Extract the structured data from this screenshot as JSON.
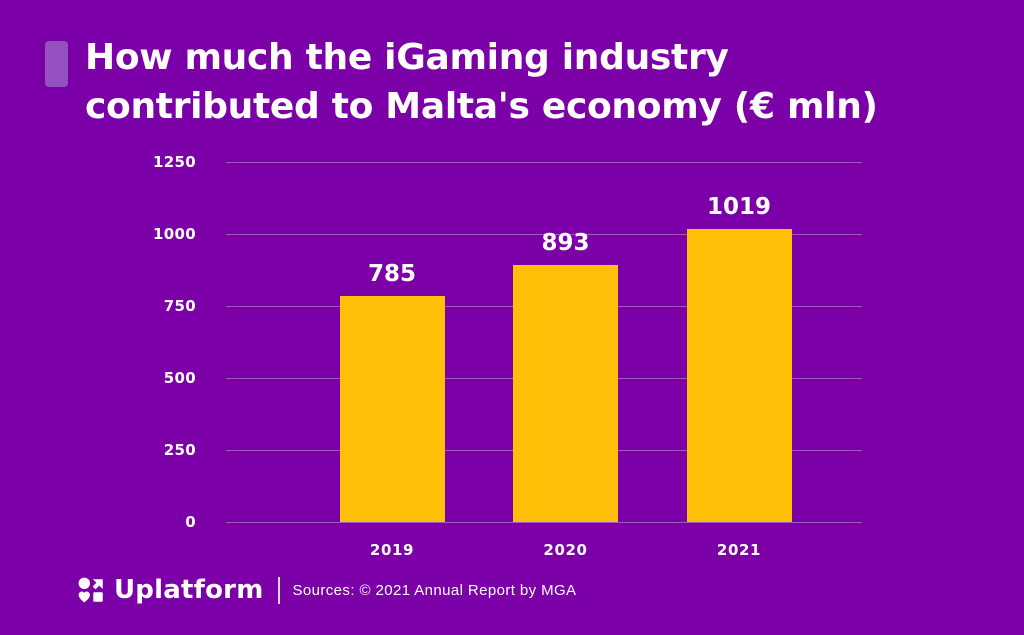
{
  "page": {
    "background_color": "#7c00a8"
  },
  "title": {
    "line1": "How much the iGaming industry",
    "line2": "contributed to Malta's economy (€ mln)"
  },
  "chart_data": {
    "type": "bar",
    "categories": [
      "2019",
      "2020",
      "2021"
    ],
    "values": [
      785,
      893,
      1019
    ],
    "data_labels": [
      "785",
      "893",
      "1019"
    ],
    "title": "How much the iGaming industry contributed to Malta's economy (€ mln)",
    "xlabel": "",
    "ylabel": "",
    "ylim": [
      0,
      1250
    ],
    "yticks": [
      0,
      250,
      500,
      750,
      1000,
      1250
    ],
    "grid": true,
    "legend": false,
    "bar_color": "#ffc107",
    "gridline_color": "rgba(255,255,255,0.32)",
    "label_color": "#ffffff"
  },
  "footer": {
    "brand": "Uplatform",
    "source": "Sources: © 2021 Annual Report by MGA"
  },
  "icons": {
    "uplatform_logo": "four shapes in 2x2 grid: circle, arrow-up-right, heart, square"
  },
  "colors": {
    "background": "#7c00a8",
    "bar": "#ffc107",
    "text": "#ffffff",
    "title_bullet": "#9551c0",
    "gridline": "rgba(255,255,255,0.32)"
  }
}
